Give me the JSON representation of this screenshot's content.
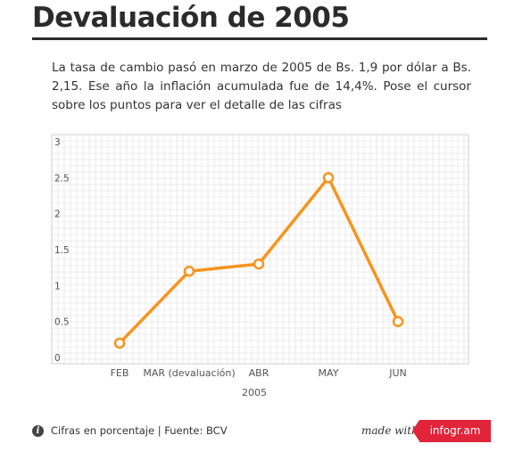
{
  "title": "Devaluación de 2005",
  "description": "La tasa de cambio pasó en marzo de 2005 de Bs. 1,9 por dólar a Bs. 2,15. Ese año la inflación acumulada fue de 14,4%. Pose el cursor sobre los puntos para ver el detalle de las cifras",
  "footer": {
    "info_icon": "info-icon",
    "note": "Cifras en porcentaje | Fuente: BCV",
    "made_with": "made with",
    "brand": "infogr.am"
  },
  "colors": {
    "line": "#f7941d",
    "grid": "#dedede",
    "brand": "#e2243b"
  },
  "chart_data": {
    "type": "line",
    "title": "",
    "xlabel": "2005",
    "ylabel": "",
    "categories": [
      "FEB",
      "MAR (devaluación)",
      "ABR",
      "MAY",
      "JUN"
    ],
    "series": [
      {
        "values": [
          0.2,
          1.2,
          1.3,
          2.5,
          0.5
        ]
      }
    ],
    "ylim": [
      0,
      3
    ],
    "yticks": [
      {
        "value": 0,
        "label": "0"
      },
      {
        "value": 0.5,
        "label": "0.5"
      },
      {
        "value": 1,
        "label": "1"
      },
      {
        "value": 1.5,
        "label": "1.5"
      },
      {
        "value": 2,
        "label": "2"
      },
      {
        "value": 2.5,
        "label": "2.5"
      },
      {
        "value": 3,
        "label": "3"
      }
    ],
    "grid": true,
    "legend": "none"
  }
}
